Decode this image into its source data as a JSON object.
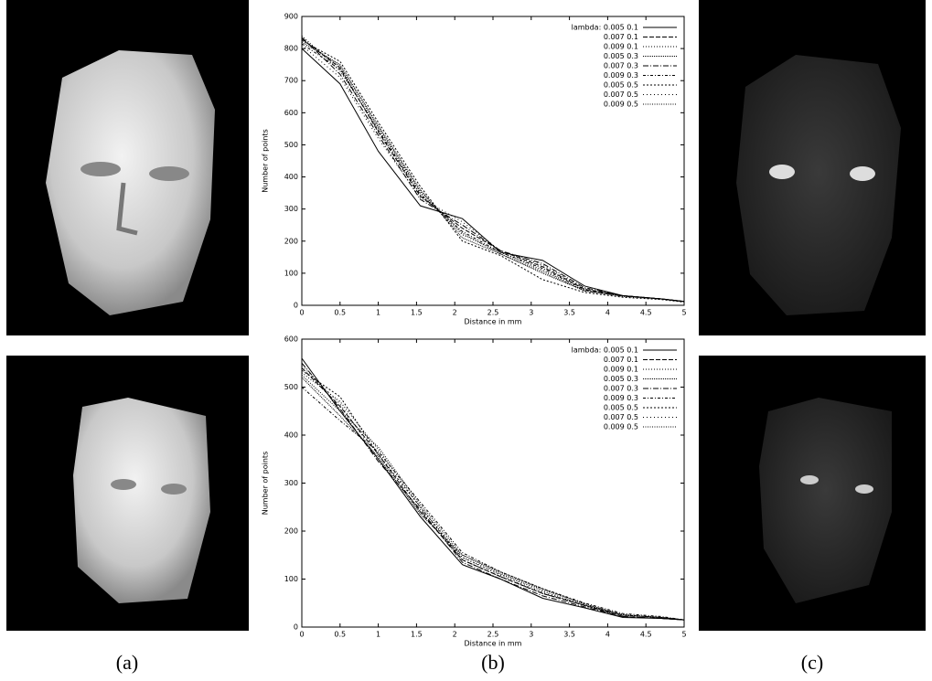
{
  "captions": [
    "(a)",
    "(b)",
    "(c)"
  ],
  "chart_data": [
    {
      "type": "line",
      "x_label": "Distance in mm",
      "y_label": "Number of points",
      "x": [
        0,
        0.5,
        1,
        1.55,
        2.1,
        2.6,
        3.15,
        3.7,
        4.2,
        4.7,
        5
      ],
      "xlim": [
        0,
        5
      ],
      "xticks": [
        0,
        0.5,
        1,
        1.5,
        2,
        2.5,
        3,
        3.5,
        4,
        4.5,
        5
      ],
      "ylim": [
        0,
        900
      ],
      "yticks": [
        0,
        100,
        200,
        300,
        400,
        500,
        600,
        700,
        800,
        900
      ],
      "grid": false,
      "legend": "upper-right",
      "series": [
        {
          "name": "lambda: 0.005 0.1",
          "color": "#000000",
          "values": [
            800,
            690,
            480,
            310,
            270,
            165,
            140,
            60,
            30,
            20,
            12
          ]
        },
        {
          "name": "0.007 0.1",
          "color": "#000000",
          "values": [
            830,
            740,
            540,
            340,
            240,
            170,
            120,
            50,
            30,
            20,
            12
          ]
        },
        {
          "name": "0.009 0.1",
          "color": "#000000",
          "values": [
            840,
            730,
            550,
            350,
            220,
            165,
            110,
            45,
            30,
            20,
            12
          ]
        },
        {
          "name": "0.005 0.3",
          "color": "#000000",
          "values": [
            820,
            750,
            560,
            360,
            210,
            160,
            100,
            45,
            28,
            20,
            12
          ]
        },
        {
          "name": "0.007 0.3",
          "color": "#000000",
          "values": [
            835,
            720,
            530,
            330,
            250,
            170,
            130,
            55,
            30,
            20,
            12
          ]
        },
        {
          "name": "0.009 0.3",
          "color": "#000000",
          "values": [
            815,
            735,
            545,
            345,
            230,
            165,
            115,
            48,
            30,
            20,
            12
          ]
        },
        {
          "name": "0.005 0.5",
          "color": "#000000",
          "values": [
            825,
            760,
            570,
            370,
            200,
            155,
            80,
            40,
            25,
            18,
            10
          ]
        },
        {
          "name": "0.007 0.5",
          "color": "#000000",
          "values": [
            810,
            710,
            520,
            335,
            260,
            170,
            125,
            52,
            30,
            20,
            12
          ]
        },
        {
          "name": "0.009 0.5",
          "color": "#000000",
          "values": [
            830,
            745,
            555,
            355,
            225,
            160,
            105,
            45,
            28,
            20,
            12
          ]
        }
      ]
    },
    {
      "type": "line",
      "x_label": "Distance in mm",
      "y_label": "Number of points",
      "x": [
        0,
        0.5,
        1,
        1.55,
        2.1,
        2.6,
        3.15,
        3.7,
        4.2,
        4.7,
        5
      ],
      "xlim": [
        0,
        5
      ],
      "xticks": [
        0,
        0.5,
        1,
        1.5,
        2,
        2.5,
        3,
        3.5,
        4,
        4.5,
        5
      ],
      "ylim": [
        0,
        600
      ],
      "yticks": [
        0,
        100,
        200,
        300,
        400,
        500,
        600
      ],
      "grid": false,
      "legend": "upper-right",
      "series": [
        {
          "name": "lambda: 0.005 0.1",
          "color": "#000000",
          "values": [
            560,
            450,
            350,
            230,
            130,
            100,
            60,
            40,
            20,
            18,
            15
          ]
        },
        {
          "name": "0.007 0.1",
          "color": "#000000",
          "values": [
            540,
            460,
            360,
            240,
            140,
            105,
            70,
            45,
            22,
            18,
            15
          ]
        },
        {
          "name": "0.009 0.1",
          "color": "#000000",
          "values": [
            530,
            470,
            370,
            250,
            145,
            110,
            75,
            45,
            25,
            20,
            15
          ]
        },
        {
          "name": "0.005 0.3",
          "color": "#000000",
          "values": [
            520,
            440,
            355,
            235,
            150,
            115,
            80,
            48,
            25,
            20,
            15
          ]
        },
        {
          "name": "0.007 0.3",
          "color": "#000000",
          "values": [
            550,
            455,
            345,
            245,
            135,
            100,
            65,
            42,
            22,
            18,
            15
          ]
        },
        {
          "name": "0.009 0.3",
          "color": "#000000",
          "values": [
            500,
            430,
            365,
            260,
            155,
            115,
            80,
            50,
            28,
            22,
            15
          ]
        },
        {
          "name": "0.005 0.5",
          "color": "#000000",
          "values": [
            535,
            480,
            360,
            250,
            140,
            105,
            70,
            45,
            25,
            20,
            15
          ]
        },
        {
          "name": "0.007 0.5",
          "color": "#000000",
          "values": [
            545,
            465,
            350,
            240,
            145,
            108,
            72,
            46,
            24,
            20,
            15
          ]
        },
        {
          "name": "0.009 0.5",
          "color": "#000000",
          "values": [
            525,
            450,
            375,
            255,
            150,
            112,
            78,
            48,
            26,
            20,
            15
          ]
        }
      ]
    }
  ]
}
